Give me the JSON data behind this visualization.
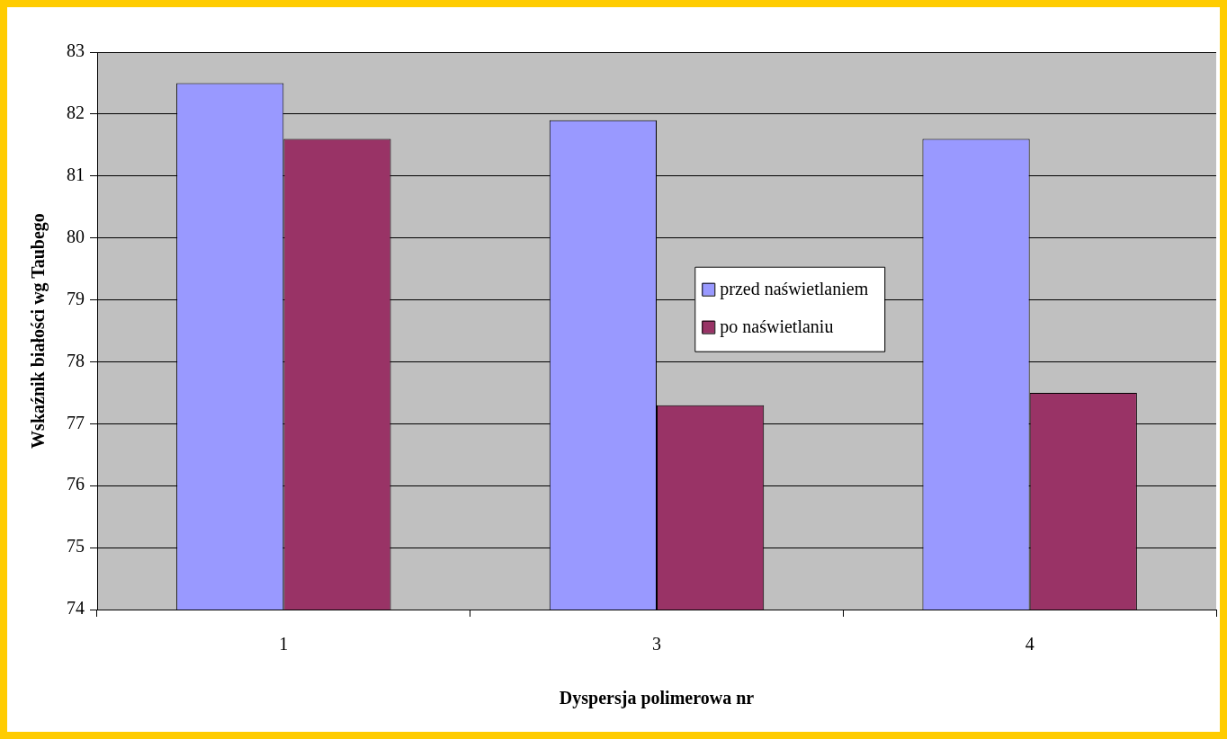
{
  "chart_data": {
    "type": "bar",
    "xlabel": "Dyspersja polimerowa nr",
    "ylabel": "Wskaźnik białości wg Taubego",
    "categories": [
      "1",
      "3",
      "4"
    ],
    "series": [
      {
        "name": "przed naświetlaniem",
        "color": "#9999ff",
        "values": [
          82.5,
          81.9,
          81.6
        ]
      },
      {
        "name": "po naświetlaniu",
        "color": "#993366",
        "values": [
          81.6,
          77.3,
          77.5
        ]
      }
    ],
    "ylim": [
      74,
      83
    ],
    "yticks": [
      74,
      75,
      76,
      77,
      78,
      79,
      80,
      81,
      82,
      83
    ],
    "grid": "y",
    "legend": "right"
  }
}
